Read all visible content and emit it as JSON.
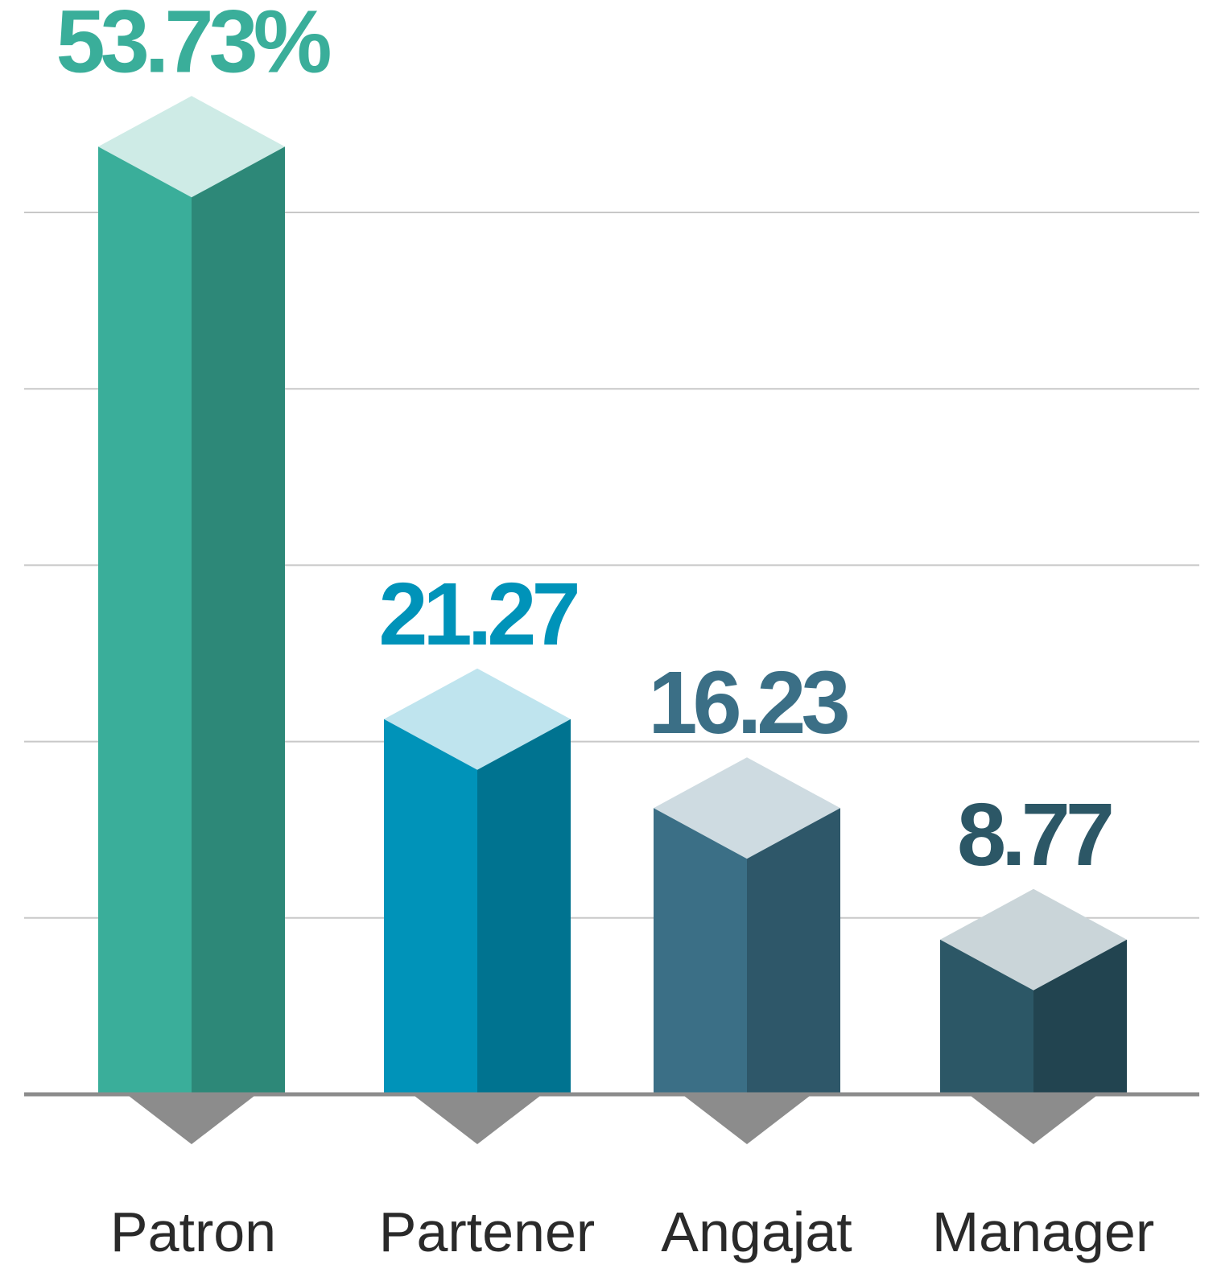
{
  "chart_data": {
    "type": "bar3d",
    "categories": [
      "Patron",
      "Partener",
      "Angajat",
      "Manager"
    ],
    "values": [
      53.73,
      21.27,
      16.23,
      8.77
    ],
    "value_labels": [
      "53.73%",
      "21.27",
      "16.23",
      "8.77"
    ],
    "colors": [
      "#3aae9a",
      "#0093b9",
      "#3b6f86",
      "#2c5766"
    ],
    "ylim": [
      0,
      62
    ],
    "yticks": [
      0,
      10,
      20,
      30,
      40,
      50
    ],
    "grid": true
  }
}
